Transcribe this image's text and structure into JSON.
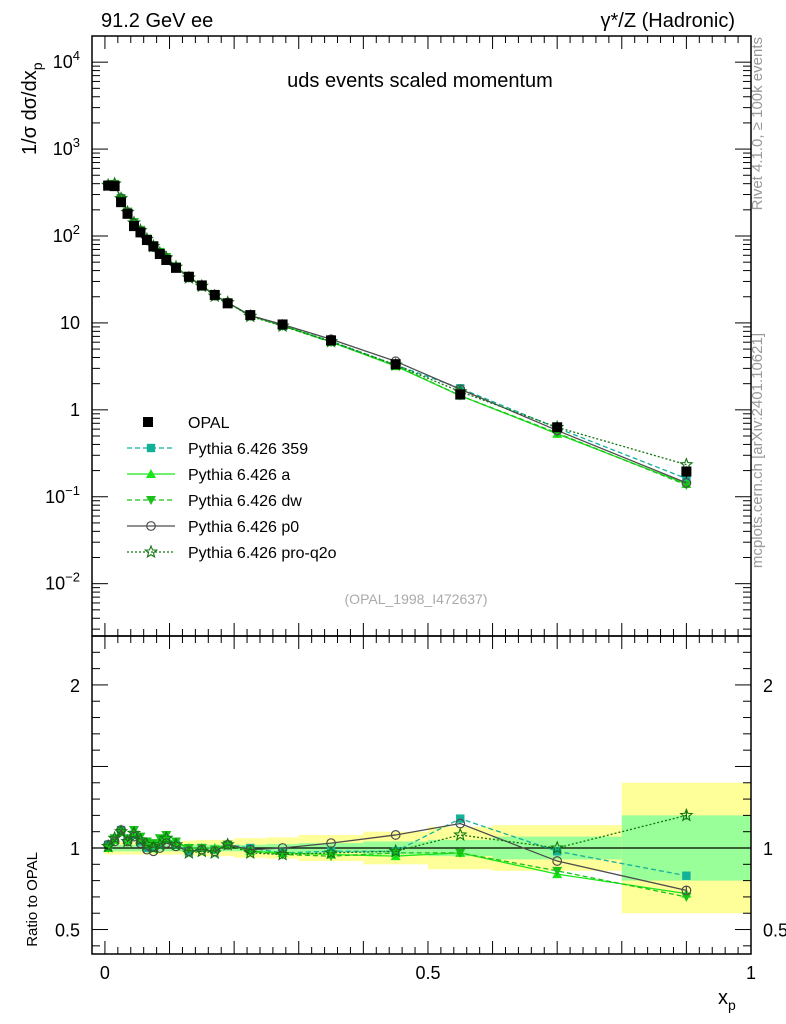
{
  "header": {
    "left": "91.2 GeV ee",
    "right": "γ*/Z (Hadronic)"
  },
  "side_labels": {
    "rivet": "Rivet 4.1.0, ≥ 100k events",
    "mcplots": "mcplots.cern.ch [arXiv:2401.10621]"
  },
  "chart_data": [
    {
      "type": "line",
      "panel": "main",
      "title": "uds events scaled momentum",
      "watermark": "(OPAL_1998_I472637)",
      "ylabel_prefix": "1/σ  dσ/dx",
      "ylabel_sub": "p",
      "yscale": "log",
      "ylim": [
        0.0025,
        20000
      ],
      "xlim": [
        -0.02,
        1.0
      ],
      "y_tick_labels": [
        {
          "value": 10000,
          "base": "10",
          "exp": "4"
        },
        {
          "value": 1000,
          "base": "10",
          "exp": "3"
        },
        {
          "value": 100,
          "base": "10",
          "exp": "2"
        },
        {
          "value": 10,
          "base": "10",
          "exp": ""
        },
        {
          "value": 1,
          "base": "1",
          "exp": ""
        },
        {
          "value": 0.1,
          "base": "10",
          "exp": "−1"
        },
        {
          "value": 0.01,
          "base": "10",
          "exp": "−2"
        }
      ],
      "x": [
        0.005,
        0.015,
        0.025,
        0.035,
        0.045,
        0.055,
        0.065,
        0.075,
        0.085,
        0.095,
        0.11,
        0.13,
        0.15,
        0.17,
        0.19,
        0.225,
        0.275,
        0.35,
        0.45,
        0.55,
        0.7,
        0.9
      ],
      "data": {
        "name": "OPAL",
        "values": [
          380,
          375,
          245,
          180,
          130,
          110,
          90,
          76,
          62,
          53,
          43,
          34,
          27,
          21,
          16.8,
          12.3,
          9.6,
          6.3,
          3.35,
          1.5,
          0.63,
          0.195
        ],
        "errors_rel": [
          0.04,
          0.04,
          0.04,
          0.04,
          0.04,
          0.04,
          0.04,
          0.04,
          0.04,
          0.04,
          0.04,
          0.04,
          0.04,
          0.04,
          0.04,
          0.04,
          0.04,
          0.04,
          0.05,
          0.06,
          0.08,
          0.15
        ]
      },
      "series": [
        {
          "name": "Pythia 6.426 359",
          "color": "#13b19a",
          "dash": "5,3",
          "marker": "square"
        },
        {
          "name": "Pythia 6.426 a",
          "color": "#19e619",
          "dash": "",
          "marker": "triangle-up"
        },
        {
          "name": "Pythia 6.426 dw",
          "color": "#19c119",
          "dash": "5,3",
          "marker": "triangle-down"
        },
        {
          "name": "Pythia 6.426 p0",
          "color": "#4d4d4d",
          "dash": "",
          "marker": "circle"
        },
        {
          "name": "Pythia 6.426 pro-q2o",
          "color": "#117711",
          "dash": "2,2",
          "marker": "star"
        }
      ]
    },
    {
      "type": "line",
      "panel": "ratio",
      "ylabel": "Ratio to OPAL",
      "ylim": [
        0.35,
        2.3
      ],
      "xlabel": "x",
      "xlabel_sub": "p",
      "x_tick_labels": [
        {
          "value": 0,
          "label": "0"
        },
        {
          "value": 0.5,
          "label": "0.5"
        },
        {
          "value": 1,
          "label": "1"
        }
      ],
      "y_tick_labels": [
        {
          "value": 0.5,
          "label": "0.5"
        },
        {
          "value": 1,
          "label": "1"
        },
        {
          "value": 2,
          "label": "2"
        }
      ],
      "bins": [
        [
          0.0,
          0.01
        ],
        [
          0.01,
          0.02
        ],
        [
          0.02,
          0.03
        ],
        [
          0.03,
          0.04
        ],
        [
          0.04,
          0.05
        ],
        [
          0.05,
          0.06
        ],
        [
          0.06,
          0.07
        ],
        [
          0.07,
          0.08
        ],
        [
          0.08,
          0.09
        ],
        [
          0.09,
          0.1
        ],
        [
          0.1,
          0.12
        ],
        [
          0.12,
          0.14
        ],
        [
          0.14,
          0.16
        ],
        [
          0.16,
          0.18
        ],
        [
          0.18,
          0.2
        ],
        [
          0.2,
          0.25
        ],
        [
          0.25,
          0.3
        ],
        [
          0.3,
          0.4
        ],
        [
          0.4,
          0.5
        ],
        [
          0.5,
          0.6
        ],
        [
          0.6,
          0.8
        ],
        [
          0.8,
          1.0
        ]
      ],
      "band_stat": [
        0.02,
        0.02,
        0.02,
        0.02,
        0.02,
        0.02,
        0.02,
        0.02,
        0.02,
        0.02,
        0.02,
        0.02,
        0.02,
        0.02,
        0.02,
        0.02,
        0.025,
        0.03,
        0.04,
        0.05,
        0.07,
        0.2
      ],
      "band_tot": [
        0.04,
        0.04,
        0.04,
        0.04,
        0.04,
        0.04,
        0.04,
        0.04,
        0.04,
        0.04,
        0.04,
        0.045,
        0.05,
        0.05,
        0.05,
        0.06,
        0.065,
        0.08,
        0.1,
        0.13,
        0.14,
        0.4
      ],
      "series": [
        {
          "name": "Pythia 6.426 359",
          "values": [
            1.02,
            1.05,
            1.11,
            1.05,
            1.08,
            1.04,
            1.0,
            1.0,
            1.02,
            1.05,
            1.02,
            0.98,
            1.0,
            0.99,
            1.02,
            1.0,
            0.97,
            0.98,
            0.98,
            1.18,
            0.98,
            0.83
          ]
        },
        {
          "name": "Pythia 6.426 a",
          "values": [
            1.0,
            1.05,
            1.1,
            1.05,
            1.1,
            1.06,
            1.03,
            1.02,
            1.04,
            1.06,
            1.03,
            1.0,
            1.0,
            1.0,
            1.02,
            0.98,
            0.97,
            0.96,
            0.95,
            0.97,
            0.84,
            0.72
          ]
        },
        {
          "name": "Pythia 6.426 dw",
          "values": [
            1.0,
            1.06,
            1.1,
            1.06,
            1.11,
            1.07,
            1.04,
            1.03,
            1.06,
            1.08,
            1.04,
            1.0,
            1.0,
            0.99,
            1.02,
            0.98,
            0.96,
            0.95,
            0.97,
            0.97,
            0.86,
            0.7
          ]
        },
        {
          "name": "Pythia 6.426 p0",
          "values": [
            1.02,
            1.04,
            1.11,
            1.04,
            1.07,
            1.03,
            0.99,
            0.98,
            1.0,
            1.03,
            1.01,
            0.98,
            0.99,
            0.98,
            1.02,
            0.99,
            1.0,
            1.03,
            1.08,
            1.15,
            0.92,
            0.74
          ]
        },
        {
          "name": "Pythia 6.426 pro-q2o",
          "values": [
            1.01,
            1.06,
            1.1,
            1.04,
            1.09,
            1.05,
            1.02,
            1.0,
            1.02,
            1.06,
            1.02,
            0.97,
            0.98,
            0.97,
            1.02,
            0.97,
            0.96,
            0.97,
            0.98,
            1.08,
            1.0,
            1.2
          ]
        }
      ]
    }
  ]
}
